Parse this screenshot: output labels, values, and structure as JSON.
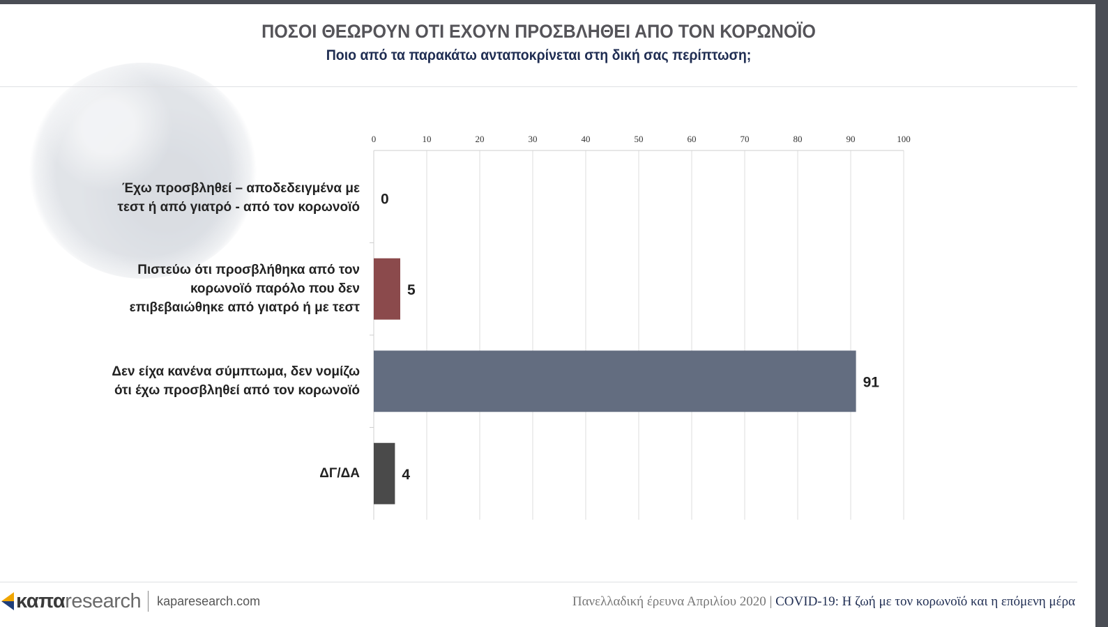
{
  "header": {
    "title": "ΠΟΣΟΙ ΘΕΩΡΟΥΝ ΟΤΙ ΕΧΟΥΝ ΠΡΟΣΒΛΗΘΕΙ ΑΠΟ ΤΟΝ ΚΟΡΩΝΟΪΟ",
    "subtitle": "Ποιο από τα παρακάτω ανταποκρίνεται στη δική σας περίπτωση;"
  },
  "chart_data": {
    "type": "bar",
    "orientation": "horizontal",
    "categories": [
      [
        "Έχω προσβληθεί – αποδεδειγμένα με",
        "τεστ ή από γιατρό - από τον κορωνοϊό"
      ],
      [
        "Πιστεύω ότι προσβλήθηκα από τον",
        "κορωνοϊό παρόλο που δεν",
        "επιβεβαιώθηκε από γιατρό ή με τεστ"
      ],
      [
        "Δεν είχα κανένα σύμπτωμα, δεν νομίζω",
        "ότι έχω προσβληθεί από τον κορωνοϊό"
      ],
      [
        "ΔΓ/ΔΑ"
      ]
    ],
    "values": [
      0,
      5,
      91,
      4
    ],
    "colors": [
      "#8b4a4c",
      "#8b4a4c",
      "#636d80",
      "#4a4a4a"
    ],
    "xlim": [
      0,
      100
    ],
    "xticks": [
      0,
      10,
      20,
      30,
      40,
      50,
      60,
      70,
      80,
      90,
      100
    ],
    "grid": true,
    "data_labels": true
  },
  "footer": {
    "logo_bold": "καπα",
    "logo_light": "research",
    "url": "kaparesearch.com",
    "survey": "Πανελλαδική έρευνα Απριλίου 2020",
    "separator": "|",
    "study": "COVID-19: Η ζωή με τον κορωνοϊό και η επόμενη μέρα"
  }
}
